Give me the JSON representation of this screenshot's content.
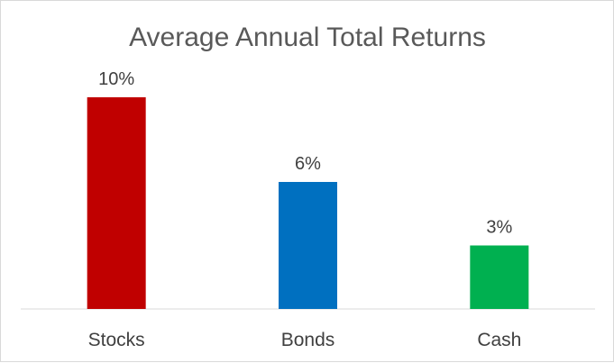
{
  "chart_data": {
    "type": "bar",
    "title": "Average Annual Total Returns",
    "xlabel": "",
    "ylabel": "",
    "categories": [
      "Stocks",
      "Bonds",
      "Cash"
    ],
    "values": [
      10,
      6,
      3
    ],
    "data_labels": [
      "10%",
      "6%",
      "3%"
    ],
    "unit": "%",
    "ylim": [
      0,
      10
    ],
    "colors": [
      "#C00000",
      "#0070C0",
      "#00B050"
    ],
    "grid": false,
    "legend": "none"
  }
}
